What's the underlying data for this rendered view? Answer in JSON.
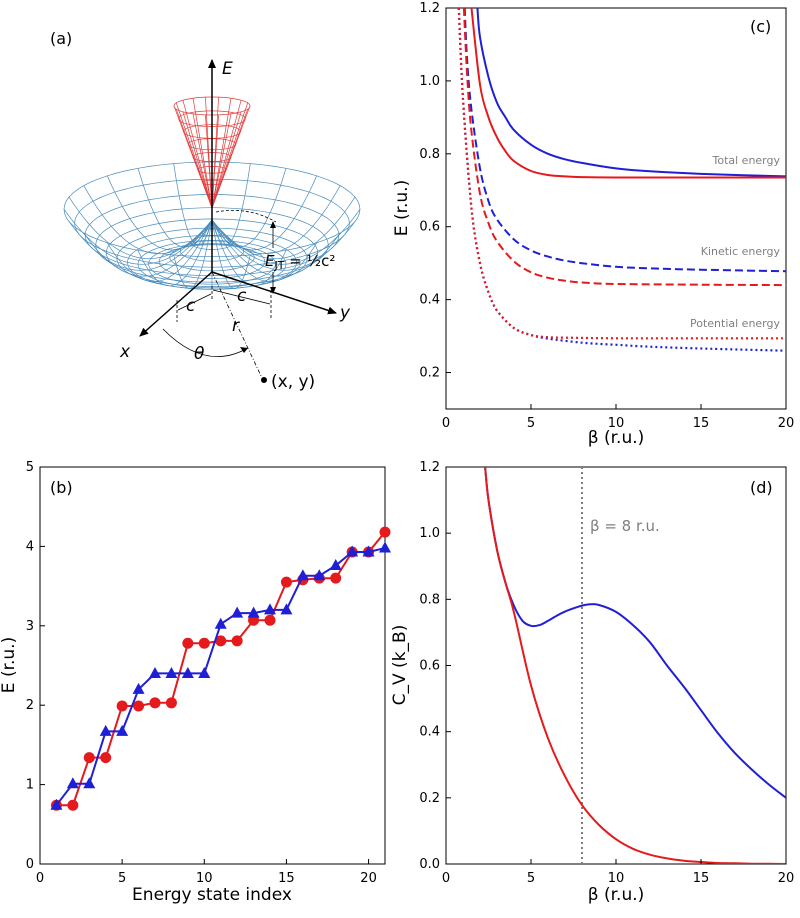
{
  "chart_data": [
    {
      "panel": "(a)",
      "type": "diagram",
      "title": "Mexican-hat potential energy surface",
      "labels": {
        "axis_e": "E",
        "axis_x": "x",
        "axis_y": "y",
        "c1": "c",
        "c2": "c",
        "r": "r",
        "theta": "θ",
        "point": "(x, y)",
        "ejt_pre": "E",
        "ejt_sub": "JT",
        "ejt_post": " = ½c²"
      }
    },
    {
      "panel": "(c)",
      "type": "line",
      "xlabel": "β (r.u.)",
      "ylabel": "E (r.u.)",
      "xlim": [
        0,
        20
      ],
      "ylim": [
        0.1,
        1.2
      ],
      "xticks": [
        0,
        5,
        10,
        15,
        20
      ],
      "yticks": [
        0.2,
        0.4,
        0.6,
        0.8,
        1.0,
        1.2
      ],
      "annotations": [
        "Total energy",
        "Kinetic energy",
        "Potential energy"
      ],
      "series": [
        {
          "name": "total-blue",
          "color": "#1f1fd6",
          "style": "solid",
          "x": [
            1.85,
            2.0,
            2.5,
            3,
            3.5,
            4,
            5,
            6,
            7,
            8,
            10,
            12,
            15,
            20
          ],
          "y": [
            1.2,
            1.12,
            1.01,
            0.94,
            0.9,
            0.865,
            0.825,
            0.8,
            0.785,
            0.775,
            0.76,
            0.752,
            0.745,
            0.738
          ]
        },
        {
          "name": "total-red",
          "color": "#e41a1c",
          "style": "solid",
          "x": [
            1.5,
            2,
            2.5,
            3,
            3.5,
            4,
            5,
            6,
            7,
            8,
            10,
            12,
            15,
            20
          ],
          "y": [
            1.2,
            0.99,
            0.9,
            0.845,
            0.807,
            0.78,
            0.753,
            0.742,
            0.738,
            0.736,
            0.735,
            0.735,
            0.735,
            0.735
          ]
        },
        {
          "name": "kinetic-blue",
          "color": "#1f1fd6",
          "style": "dashed",
          "x": [
            1.1,
            1.25,
            1.5,
            2,
            2.5,
            3,
            4,
            5,
            6,
            7,
            8,
            10,
            12,
            15,
            20
          ],
          "y": [
            1.2,
            1.05,
            0.92,
            0.76,
            0.67,
            0.62,
            0.565,
            0.535,
            0.518,
            0.507,
            0.5,
            0.49,
            0.486,
            0.482,
            0.478
          ]
        },
        {
          "name": "kinetic-red",
          "color": "#e41a1c",
          "style": "dashed",
          "x": [
            1.05,
            1.25,
            1.5,
            2,
            2.5,
            3,
            4,
            5,
            6,
            7,
            8,
            10,
            15,
            20
          ],
          "y": [
            1.2,
            1.01,
            0.86,
            0.69,
            0.61,
            0.56,
            0.505,
            0.475,
            0.46,
            0.452,
            0.447,
            0.443,
            0.441,
            0.44
          ]
        },
        {
          "name": "potential-blue",
          "color": "#1f1fd6",
          "style": "dotted",
          "x": [
            0.75,
            1,
            1.5,
            2,
            2.5,
            3,
            4,
            5,
            6,
            8,
            10,
            12,
            15,
            20
          ],
          "y": [
            1.2,
            0.95,
            0.65,
            0.5,
            0.42,
            0.37,
            0.322,
            0.303,
            0.293,
            0.282,
            0.276,
            0.271,
            0.266,
            0.26
          ]
        },
        {
          "name": "potential-red",
          "color": "#e41a1c",
          "style": "dotted",
          "x": [
            0.75,
            1,
            1.5,
            2,
            2.5,
            3,
            4,
            5,
            6,
            8,
            10,
            12,
            15,
            20
          ],
          "y": [
            1.2,
            0.95,
            0.65,
            0.5,
            0.42,
            0.37,
            0.322,
            0.303,
            0.297,
            0.295,
            0.294,
            0.294,
            0.294,
            0.294
          ]
        }
      ]
    },
    {
      "panel": "(b)",
      "type": "line",
      "xlabel": "Energy state index",
      "ylabel": "E (r.u.)",
      "xlim": [
        0,
        21
      ],
      "ylim": [
        0,
        5
      ],
      "xticks": [
        0,
        5,
        10,
        15,
        20
      ],
      "yticks": [
        0,
        1,
        2,
        3,
        4,
        5
      ],
      "series": [
        {
          "name": "red-circles",
          "color": "#e41a1c",
          "marker": "circle",
          "x": [
            1,
            2,
            3,
            4,
            5,
            6,
            7,
            8,
            9,
            10,
            11,
            12,
            13,
            14,
            15,
            16,
            17,
            18,
            19,
            20,
            21
          ],
          "y": [
            0.74,
            0.74,
            1.34,
            1.34,
            1.99,
            1.99,
            2.03,
            2.03,
            2.78,
            2.78,
            2.81,
            2.81,
            3.07,
            3.07,
            3.55,
            3.58,
            3.6,
            3.6,
            3.93,
            3.93,
            4.18
          ]
        },
        {
          "name": "blue-triangles",
          "color": "#1f1fd6",
          "marker": "triangle",
          "x": [
            1,
            2,
            3,
            4,
            5,
            6,
            7,
            8,
            9,
            10,
            11,
            12,
            13,
            14,
            15,
            16,
            17,
            18,
            19,
            20,
            21
          ],
          "y": [
            0.74,
            1.01,
            1.01,
            1.67,
            1.67,
            2.2,
            2.4,
            2.4,
            2.4,
            2.4,
            3.02,
            3.16,
            3.16,
            3.2,
            3.2,
            3.63,
            3.63,
            3.76,
            3.93,
            3.93,
            3.98
          ]
        }
      ]
    },
    {
      "panel": "(d)",
      "type": "line",
      "xlabel": "β (r.u.)",
      "ylabel": "C_V (k_B)",
      "xlim": [
        0,
        20
      ],
      "ylim": [
        0,
        1.2
      ],
      "xticks": [
        0,
        5,
        10,
        15,
        20
      ],
      "yticks": [
        0.0,
        0.2,
        0.4,
        0.6,
        0.8,
        1.0,
        1.2
      ],
      "vline": {
        "x": 8,
        "label": "β = 8 r.u.",
        "color": "#808080"
      },
      "series": [
        {
          "name": "cv-blue",
          "color": "#1f1fd6",
          "style": "solid",
          "x": [
            2.3,
            2.5,
            3,
            3.5,
            4,
            4.5,
            5,
            5.5,
            6,
            6.5,
            7,
            7.5,
            8,
            8.5,
            9,
            10,
            11,
            12,
            13,
            14,
            15,
            16,
            17,
            18,
            19,
            20
          ],
          "y": [
            1.2,
            1.1,
            0.95,
            0.85,
            0.78,
            0.735,
            0.72,
            0.722,
            0.735,
            0.75,
            0.763,
            0.773,
            0.781,
            0.785,
            0.783,
            0.762,
            0.722,
            0.67,
            0.6,
            0.535,
            0.465,
            0.395,
            0.335,
            0.285,
            0.24,
            0.2
          ]
        },
        {
          "name": "cv-red",
          "color": "#e41a1c",
          "style": "solid",
          "x": [
            2.3,
            2.5,
            3,
            3.5,
            4,
            5,
            6,
            7,
            8,
            9,
            10,
            11,
            12,
            13,
            14,
            15,
            16,
            17,
            18,
            19,
            20
          ],
          "y": [
            1.2,
            1.1,
            0.95,
            0.85,
            0.76,
            0.54,
            0.38,
            0.265,
            0.178,
            0.118,
            0.075,
            0.046,
            0.028,
            0.017,
            0.01,
            0.006,
            0.003,
            0.002,
            0.001,
            0.0005,
            0.0
          ]
        }
      ]
    }
  ]
}
